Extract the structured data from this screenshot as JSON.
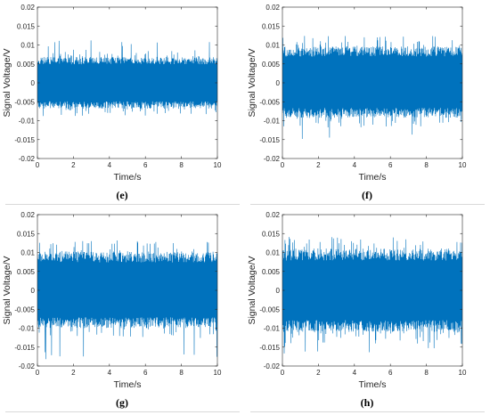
{
  "figure": {
    "line_color": "#0072BD",
    "axis_color": "#262626",
    "separator_color": "#d9d9d9"
  },
  "chart_data": [
    {
      "type": "line",
      "caption": "(e)",
      "xlabel": "Time/s",
      "ylabel": "Signal Voltage/V",
      "xlim": [
        0,
        10
      ],
      "ylim": [
        -0.02,
        0.02
      ],
      "xticks": [
        "0",
        "2",
        "4",
        "6",
        "8",
        "10"
      ],
      "yticks": [
        "0.02",
        "0.015",
        "0.01",
        "0.005",
        "0",
        "-0.005",
        "-0.01",
        "-0.015",
        "-0.02"
      ],
      "series": [
        {
          "values_description_only": false,
          "band_upper": 0.0065,
          "band_lower": -0.0065,
          "peak_max": 0.0112,
          "peak_min": -0.0082
        }
      ]
    },
    {
      "type": "line",
      "caption": "(f)",
      "xlabel": "Time/s",
      "ylabel": "Signal Voltage/V",
      "xlim": [
        0,
        10
      ],
      "ylim": [
        -0.02,
        0.02
      ],
      "xticks": [
        "0",
        "2",
        "4",
        "6",
        "8",
        "10"
      ],
      "yticks": [
        "0.02",
        "0.015",
        "0.01",
        "0.005",
        "0",
        "-0.005",
        "-0.01",
        "-0.015",
        "-0.02"
      ],
      "series": [
        {
          "values_description_only": false,
          "band_upper": 0.0092,
          "band_lower": -0.0088,
          "peak_max": 0.0118,
          "peak_min": -0.0152
        }
      ]
    },
    {
      "type": "line",
      "caption": "(g)",
      "xlabel": "Time/s",
      "ylabel": "Signal Voltage/V",
      "xlim": [
        0,
        10
      ],
      "ylim": [
        -0.02,
        0.02
      ],
      "xticks": [
        "0",
        "2",
        "4",
        "6",
        "8",
        "10"
      ],
      "yticks": [
        "0.02",
        "0.015",
        "0.01",
        "0.005",
        "0",
        "-0.005",
        "-0.01",
        "-0.015",
        "-0.02"
      ],
      "series": [
        {
          "values_description_only": false,
          "band_upper": 0.0098,
          "band_lower": -0.0095,
          "peak_max": 0.0135,
          "peak_min": -0.0185
        }
      ]
    },
    {
      "type": "line",
      "caption": "(h)",
      "xlabel": "Time/s",
      "ylabel": "Signal Voltage/V",
      "xlim": [
        0,
        10
      ],
      "ylim": [
        -0.02,
        0.02
      ],
      "xticks": [
        "0",
        "2",
        "4",
        "6",
        "8",
        "10"
      ],
      "yticks": [
        "0.02",
        "0.015",
        "0.01",
        "0.005",
        "0",
        "-0.005",
        "-0.01",
        "-0.015",
        "-0.02"
      ],
      "series": [
        {
          "values_description_only": false,
          "band_upper": 0.0105,
          "band_lower": -0.0105,
          "peak_max": 0.0145,
          "peak_min": -0.0172
        }
      ]
    }
  ]
}
